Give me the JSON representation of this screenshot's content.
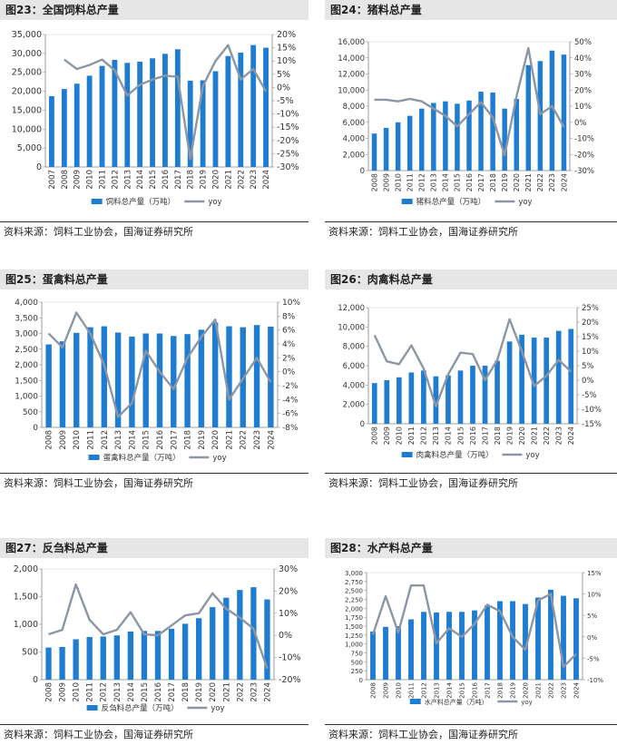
{
  "colors": {
    "bar": "#1f7dd1",
    "line": "#8c96a4"
  },
  "panels": [
    {
      "title": "图23：全国饲料总产量",
      "source": "资料来源：饲料工业协会，国海证券研究所",
      "chart_data": {
        "type": "bar+line",
        "categories": [
          "2007",
          "2008",
          "2009",
          "2010",
          "2011",
          "2012",
          "2013",
          "2014",
          "2015",
          "2016",
          "2017",
          "2018",
          "2019",
          "2020",
          "2021",
          "2022",
          "2023",
          "2024"
        ],
        "series": [
          {
            "name": "饲料总产量（万吨）",
            "type": "bar",
            "axis": "left",
            "values": [
              18700,
              20600,
              22000,
              24100,
              26700,
              28300,
              27500,
              27800,
              28700,
              29900,
              31100,
              22800,
              22900,
              25300,
              29300,
              30200,
              32200,
              31500
            ]
          },
          {
            "name": "yoy",
            "type": "line",
            "axis": "right",
            "values": [
              null,
              10.5,
              7,
              8.5,
              10.5,
              6.5,
              -3,
              1,
              3,
              4.5,
              4,
              -27,
              0.5,
              10,
              16,
              3,
              7,
              -1.5
            ]
          }
        ],
        "yleft": {
          "min": 0,
          "max": 35000,
          "ticks": [
            "0",
            "5,000",
            "10,000",
            "15,000",
            "20,000",
            "25,000",
            "30,000",
            "35,000"
          ]
        },
        "yright": {
          "min": -30,
          "max": 20,
          "ticks": [
            "-30%",
            "-25%",
            "-20%",
            "-15%",
            "-10%",
            "-5%",
            "0%",
            "5%",
            "10%",
            "15%",
            "20%"
          ]
        },
        "legend": "bottom"
      }
    },
    {
      "title": "图24：猪料总产量",
      "source": "资料来源：饲料工业协会，国海证券研究所",
      "chart_data": {
        "type": "bar+line",
        "categories": [
          "2008",
          "2009",
          "2010",
          "2011",
          "2012",
          "2013",
          "2014",
          "2015",
          "2016",
          "2017",
          "2018",
          "2019",
          "2020",
          "2021",
          "2022",
          "2023",
          "2024"
        ],
        "series": [
          {
            "name": "猪料总产量（万吨）",
            "type": "bar",
            "axis": "left",
            "values": [
              4600,
              5300,
              6000,
              6800,
              7700,
              8400,
              8600,
              8300,
              8700,
              9800,
              9700,
              7700,
              8900,
              13100,
              13600,
              14900,
              14400
            ]
          },
          {
            "name": "yoy",
            "type": "line",
            "axis": "right",
            "values": [
              14,
              14,
              13,
              14.5,
              13,
              8.5,
              4,
              -2.5,
              5,
              12.5,
              3,
              -20.5,
              16,
              46,
              5,
              10,
              -3
            ]
          }
        ],
        "yleft": {
          "min": 0,
          "max": 16000,
          "ticks": [
            "0",
            "2,000",
            "4,000",
            "6,000",
            "8,000",
            "10,000",
            "12,000",
            "14,000",
            "16,000"
          ]
        },
        "yright": {
          "min": -30,
          "max": 50,
          "ticks": [
            "-30%",
            "-20%",
            "-10%",
            "0%",
            "10%",
            "20%",
            "30%",
            "40%",
            "50%"
          ]
        },
        "legend": "bottom"
      }
    },
    {
      "title": "图25：蛋禽料总产量",
      "source": "资料来源：饲料工业协会，国海证券研究所",
      "chart_data": {
        "type": "bar+line",
        "categories": [
          "2008",
          "2009",
          "2010",
          "2011",
          "2012",
          "2013",
          "2014",
          "2015",
          "2016",
          "2017",
          "2018",
          "2019",
          "2020",
          "2021",
          "2022",
          "2023",
          "2024"
        ],
        "series": [
          {
            "name": "蛋禽料总产量（万吨）",
            "type": "bar",
            "axis": "left",
            "values": [
              2650,
              2750,
              3020,
              3200,
              3230,
              3030,
              2900,
              3000,
              3000,
              2920,
              2980,
              3120,
              3350,
              3230,
              3200,
              3270,
              3220
            ]
          },
          {
            "name": "yoy",
            "type": "line",
            "axis": "right",
            "values": [
              5.5,
              3.5,
              8.5,
              5.5,
              1,
              -6.5,
              -4.5,
              3,
              0,
              -2.5,
              2,
              5,
              7.5,
              -4,
              -1,
              2,
              -1.5
            ]
          }
        ],
        "yleft": {
          "min": 0,
          "max": 4000,
          "ticks": [
            "0",
            "500",
            "1,000",
            "1,500",
            "2,000",
            "2,500",
            "3,000",
            "3,500",
            "4,000"
          ]
        },
        "yright": {
          "min": -8,
          "max": 10,
          "ticks": [
            "-8%",
            "-6%",
            "-4%",
            "-2%",
            "0%",
            "2%",
            "4%",
            "6%",
            "8%",
            "10%"
          ]
        },
        "legend": "bottom"
      }
    },
    {
      "title": "图26：肉禽料总产量",
      "source": "资料来源：饲料工业协会，国海证券研究所",
      "chart_data": {
        "type": "bar+line",
        "categories": [
          "2008",
          "2009",
          "2010",
          "2011",
          "2012",
          "2013",
          "2014",
          "2015",
          "2016",
          "2017",
          "2018",
          "2019",
          "2020",
          "2021",
          "2022",
          "2023",
          "2024"
        ],
        "series": [
          {
            "name": "肉禽料总产量（万吨）",
            "type": "bar",
            "axis": "left",
            "values": [
              4200,
              4500,
              4800,
              5300,
              5500,
              4900,
              5000,
              5500,
              6000,
              6000,
              6500,
              8500,
              9200,
              8900,
              8900,
              9600,
              9800
            ]
          },
          {
            "name": "yoy",
            "type": "line",
            "axis": "right",
            "values": [
              15.5,
              6.5,
              5.5,
              12,
              4,
              -9,
              2,
              9.5,
              9,
              0,
              7,
              21,
              10,
              -2,
              1.5,
              7,
              3
            ]
          }
        ],
        "yleft": {
          "min": 0,
          "max": 12000,
          "ticks": [
            "0",
            "2,000",
            "4,000",
            "6,000",
            "8,000",
            "10,000",
            "12,000"
          ]
        },
        "yright": {
          "min": -15,
          "max": 25,
          "ticks": [
            "-15%",
            "-10%",
            "-5%",
            "0%",
            "5%",
            "10%",
            "15%",
            "20%",
            "25%"
          ]
        },
        "legend": "bottom"
      }
    },
    {
      "title": "图27：反刍料总产量",
      "source": "资料来源：饲料工业协会，国海证券研究所",
      "chart_data": {
        "type": "bar+line",
        "categories": [
          "2008",
          "2009",
          "2010",
          "2011",
          "2012",
          "2013",
          "2014",
          "2015",
          "2016",
          "2017",
          "2018",
          "2019",
          "2020",
          "2021",
          "2022",
          "2023",
          "2024"
        ],
        "series": [
          {
            "name": "反刍料总产量（万吨）",
            "type": "bar",
            "axis": "left",
            "values": [
              580,
              590,
              730,
              770,
              780,
              800,
              870,
              880,
              880,
              920,
              1010,
              1110,
              1310,
              1480,
              1620,
              1670,
              1450
            ]
          },
          {
            "name": "yoy",
            "type": "line",
            "axis": "right",
            "values": [
              0.5,
              2.5,
              23,
              7,
              0.5,
              2.5,
              10.5,
              0.5,
              0,
              4.5,
              9,
              10,
              19,
              12,
              8,
              3,
              -15
            ]
          }
        ],
        "yleft": {
          "min": 0,
          "max": 2000,
          "ticks": [
            "0",
            "500",
            "1,000",
            "1,500",
            "2,000"
          ]
        },
        "yright": {
          "min": -20,
          "max": 30,
          "ticks": [
            "-20%",
            "-10%",
            "0%",
            "10%",
            "20%",
            "30%"
          ]
        },
        "legend": "bottom"
      }
    },
    {
      "title": "图28：水产料总产量",
      "source": "资料来源：饲料工业协会，国海证券研究所",
      "chart_data": {
        "type": "bar+line",
        "categories": [
          "2008",
          "2009",
          "2010",
          "2011",
          "2012",
          "2013",
          "2014",
          "2015",
          "2016",
          "2017",
          "2018",
          "2019",
          "2020",
          "2021",
          "2022",
          "2023",
          "2024"
        ],
        "series": [
          {
            "name": "水产料总产量（万吨）",
            "type": "bar",
            "axis": "left",
            "values": [
              1350,
              1480,
              1500,
              1690,
              1900,
              1880,
              1900,
              1900,
              1940,
              2080,
              2200,
              2200,
              2120,
              2300,
              2520,
              2350,
              2280
            ]
          },
          {
            "name": "yoy",
            "type": "line",
            "axis": "right",
            "values": [
              0.5,
              9.5,
              1,
              12,
              12,
              -1.5,
              2,
              0,
              3,
              7.5,
              6,
              0,
              -3,
              8.5,
              10,
              -7,
              -4
            ]
          }
        ],
        "yleft": {
          "min": 0,
          "max": 3000,
          "ticks": [
            "0",
            "250",
            "500",
            "750",
            "1,000",
            "1,250",
            "1,500",
            "1,750",
            "2,000",
            "2,250",
            "2,500",
            "2,750",
            "3,000"
          ]
        },
        "yright": {
          "min": -10,
          "max": 15,
          "ticks": [
            "-10%",
            "-5%",
            "0%",
            "5%",
            "10%",
            "15%"
          ]
        },
        "legend": "bottom"
      }
    }
  ]
}
